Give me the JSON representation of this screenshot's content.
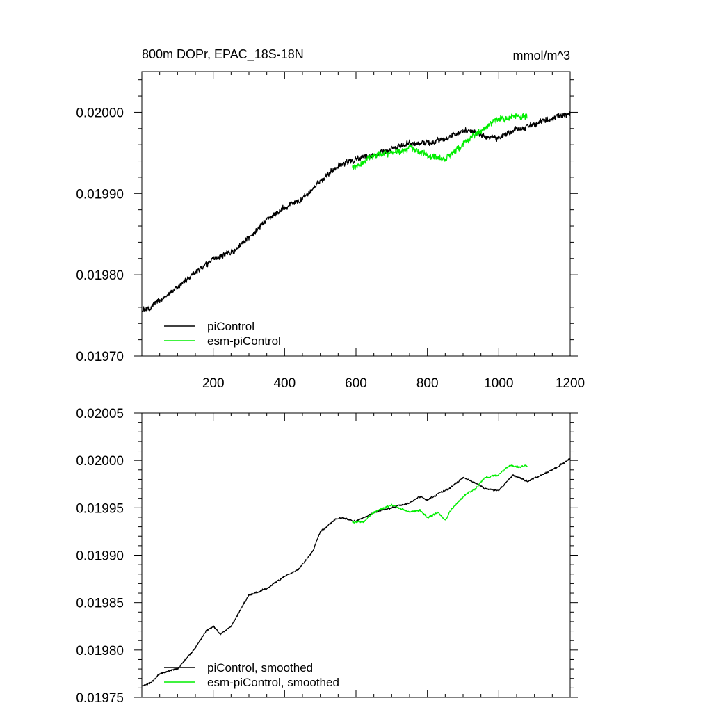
{
  "chart_data": [
    {
      "type": "line",
      "title": "800m DOPr, EPAC_18S-18N",
      "units": "mmol/m^3",
      "xlabel": "",
      "ylabel": "",
      "xlim": [
        0,
        1200
      ],
      "ylim": [
        0.0197,
        0.02005
      ],
      "x_ticks": [
        200,
        400,
        600,
        800,
        1000,
        1200
      ],
      "x_tick_labels": [
        "200",
        "400",
        "600",
        "800",
        "1000",
        "1200"
      ],
      "y_ticks": [
        0.0197,
        0.0198,
        0.0199,
        0.02
      ],
      "y_tick_labels": [
        "0.01970",
        "0.01980",
        "0.01990",
        "0.02000"
      ],
      "legend_position": "bottom-left",
      "series": [
        {
          "name": "piControl",
          "color": "#000000",
          "noise": 2.8e-06,
          "anchors": [
            [
              0,
              0.019755
            ],
            [
              50,
              0.019768
            ],
            [
              100,
              0.019785
            ],
            [
              150,
              0.019803
            ],
            [
              200,
              0.01982
            ],
            [
              250,
              0.019828
            ],
            [
              300,
              0.019845
            ],
            [
              350,
              0.019868
            ],
            [
              400,
              0.019883
            ],
            [
              450,
              0.019893
            ],
            [
              500,
              0.019915
            ],
            [
              550,
              0.019935
            ],
            [
              600,
              0.019942
            ],
            [
              650,
              0.019948
            ],
            [
              700,
              0.019955
            ],
            [
              750,
              0.019962
            ],
            [
              800,
              0.019963
            ],
            [
              850,
              0.019967
            ],
            [
              900,
              0.019978
            ],
            [
              950,
              0.019972
            ],
            [
              1000,
              0.019968
            ],
            [
              1050,
              0.01998
            ],
            [
              1100,
              0.019985
            ],
            [
              1150,
              0.019993
            ],
            [
              1200,
              0.02
            ]
          ]
        },
        {
          "name": "esm-piControl",
          "color": "#00ee00",
          "noise": 3.2e-06,
          "anchors": [
            [
              590,
              0.019932
            ],
            [
              650,
              0.019945
            ],
            [
              700,
              0.01995
            ],
            [
              750,
              0.019955
            ],
            [
              800,
              0.019945
            ],
            [
              850,
              0.019943
            ],
            [
              900,
              0.01996
            ],
            [
              950,
              0.019978
            ],
            [
              1000,
              0.01999
            ],
            [
              1050,
              0.019995
            ],
            [
              1080,
              0.019995
            ]
          ]
        }
      ]
    },
    {
      "type": "line",
      "title": "",
      "xlabel": "",
      "ylabel": "",
      "xlim": [
        0,
        1200
      ],
      "ylim": [
        0.01975,
        0.02005
      ],
      "x_ticks": [
        200,
        400,
        600,
        800,
        1000,
        1200
      ],
      "x_tick_labels": [],
      "y_ticks": [
        0.01975,
        0.0198,
        0.01985,
        0.0199,
        0.01995,
        0.02,
        0.02005
      ],
      "y_tick_labels": [
        "0.01975",
        "0.01980",
        "0.01985",
        "0.01990",
        "0.01995",
        "0.02000",
        "0.02005"
      ],
      "legend_position": "bottom-left",
      "series": [
        {
          "name": "piControl, smoothed",
          "color": "#000000",
          "noise": 7e-07,
          "anchors": [
            [
              0,
              0.019762
            ],
            [
              25,
              0.019765
            ],
            [
              50,
              0.019775
            ],
            [
              80,
              0.019778
            ],
            [
              100,
              0.01978
            ],
            [
              150,
              0.019802
            ],
            [
              180,
              0.01982
            ],
            [
              200,
              0.019825
            ],
            [
              220,
              0.019817
            ],
            [
              250,
              0.019825
            ],
            [
              280,
              0.019845
            ],
            [
              300,
              0.019858
            ],
            [
              350,
              0.019865
            ],
            [
              400,
              0.019878
            ],
            [
              440,
              0.019885
            ],
            [
              480,
              0.019905
            ],
            [
              500,
              0.019925
            ],
            [
              540,
              0.019937
            ],
            [
              560,
              0.01994
            ],
            [
              600,
              0.019935
            ],
            [
              650,
              0.019945
            ],
            [
              700,
              0.01995
            ],
            [
              750,
              0.019955
            ],
            [
              780,
              0.019962
            ],
            [
              800,
              0.019958
            ],
            [
              830,
              0.019965
            ],
            [
              860,
              0.01997
            ],
            [
              900,
              0.019982
            ],
            [
              940,
              0.019975
            ],
            [
              960,
              0.01997
            ],
            [
              1000,
              0.019968
            ],
            [
              1040,
              0.019985
            ],
            [
              1080,
              0.019978
            ],
            [
              1120,
              0.019985
            ],
            [
              1160,
              0.019992
            ],
            [
              1200,
              0.020002
            ]
          ]
        },
        {
          "name": "esm-piControl, smoothed",
          "color": "#00ee00",
          "noise": 8e-07,
          "anchors": [
            [
              590,
              0.019935
            ],
            [
              620,
              0.019935
            ],
            [
              650,
              0.019945
            ],
            [
              700,
              0.019953
            ],
            [
              750,
              0.019945
            ],
            [
              780,
              0.019948
            ],
            [
              800,
              0.01994
            ],
            [
              830,
              0.019945
            ],
            [
              850,
              0.019937
            ],
            [
              870,
              0.01995
            ],
            [
              900,
              0.019962
            ],
            [
              940,
              0.019972
            ],
            [
              960,
              0.019982
            ],
            [
              1000,
              0.019985
            ],
            [
              1030,
              0.019995
            ],
            [
              1060,
              0.019993
            ],
            [
              1080,
              0.019995
            ]
          ]
        }
      ]
    }
  ]
}
